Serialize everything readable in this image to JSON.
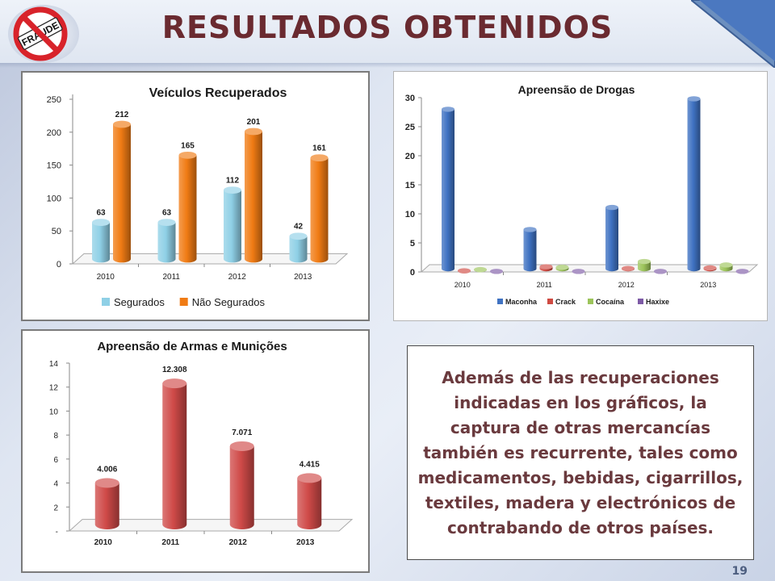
{
  "slide": {
    "title": "RESULTADOS OBTENIDOS",
    "title_color": "#6a2a30",
    "logo_text": "FRAUDE",
    "page_number": "19",
    "body_text": "Además de las recuperaciones indicadas en los gráficos, la captura de otras mercancías también es recurrente, tales como medicamentos, bebidas, cigarrillos, textiles, madera y electrónicos de contrabando de otros países."
  },
  "chart_data": [
    {
      "type": "bar",
      "title": "Veículos Recuperados",
      "categories": [
        "2010",
        "2011",
        "2012",
        "2013"
      ],
      "series": [
        {
          "name": "Segurados",
          "values": [
            63,
            63,
            112,
            42
          ],
          "labels": [
            "63",
            "63",
            "112",
            "42"
          ],
          "color": "#8fd0e6"
        },
        {
          "name": "Não Segurados",
          "values": [
            212,
            165,
            201,
            161
          ],
          "labels": [
            "212",
            "165",
            "201",
            "161"
          ],
          "color": "#f07b14"
        }
      ],
      "yticks": [
        "0",
        "50",
        "100",
        "150",
        "200",
        "250"
      ],
      "ylim": [
        0,
        250
      ],
      "legend": "bottom",
      "grid": false
    },
    {
      "type": "bar",
      "title": "Apreensão de Drogas",
      "categories": [
        "2010",
        "2011",
        "2012",
        "2013"
      ],
      "series": [
        {
          "name": "Maconha",
          "values": [
            28,
            7.3,
            11.1,
            29.8
          ],
          "color": "#3f72c2"
        },
        {
          "name": "Crack",
          "values": [
            0.2,
            0.9,
            0.6,
            0.7
          ],
          "color": "#cf4a42"
        },
        {
          "name": "Cocaína",
          "values": [
            0.4,
            0.8,
            1.8,
            1.2
          ],
          "color": "#9cc45a"
        },
        {
          "name": "Haxixe",
          "values": [
            0.1,
            0.1,
            0.1,
            0.1
          ],
          "color": "#7d5aa6"
        }
      ],
      "yticks": [
        "0",
        "5",
        "10",
        "15",
        "20",
        "25",
        "30"
      ],
      "ylim": [
        0,
        30
      ],
      "legend": "bottom",
      "grid": false
    },
    {
      "type": "bar",
      "title": "Apreensão de Armas e Munições",
      "categories": [
        "2010",
        "2011",
        "2012",
        "2013"
      ],
      "series": [
        {
          "name": "",
          "values": [
            4.006,
            12.308,
            7.071,
            4.415
          ],
          "labels": [
            "4.006",
            "12.308",
            "7.071",
            "4.415"
          ],
          "color": "#cf4a48"
        }
      ],
      "yticks": [
        "-",
        "2",
        "4",
        "6",
        "8",
        "10",
        "12",
        "14"
      ],
      "ylim": [
        0,
        14
      ],
      "legend": "none",
      "grid": false
    }
  ]
}
